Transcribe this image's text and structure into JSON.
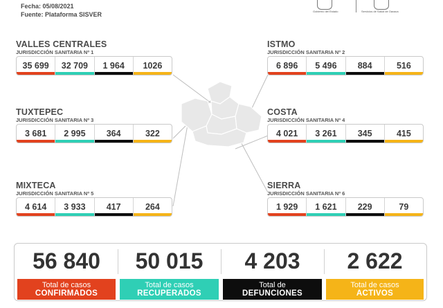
{
  "header": {
    "date": "Fecha: 05/08/2021",
    "source": "Fuente: Plataforma SISVER"
  },
  "logos": {
    "left_caption": "Gobierno del Estado",
    "right_caption": "Servicios de Salud de Oaxaca"
  },
  "colors": {
    "confirmados": "#e2421e",
    "recuperados": "#2fcfb5",
    "defunciones": "#0d0d0d",
    "activos": "#f5b418",
    "map": "#e8e8e8",
    "lines": "#bdbdbd"
  },
  "regions": [
    {
      "name": "VALLES CENTRALES",
      "jurisdiction": "JURISDICCIÓN SANITARIA Nº 1",
      "values": [
        "35 699",
        "32 709",
        "1 964",
        "1026"
      ]
    },
    {
      "name": "ISTMO",
      "jurisdiction": "JURISDICCIÓN SANITARIA Nº 2",
      "values": [
        "6 896",
        "5 496",
        "884",
        "516"
      ]
    },
    {
      "name": "TUXTEPEC",
      "jurisdiction": "JURISDICCIÓN SANITARIA Nº 3",
      "values": [
        "3 681",
        "2 995",
        "364",
        "322"
      ]
    },
    {
      "name": "COSTA",
      "jurisdiction": "JURISDICCIÓN SANITARIA Nº 4",
      "values": [
        "4 021",
        "3 261",
        "345",
        "415"
      ]
    },
    {
      "name": "MIXTECA",
      "jurisdiction": "JURISDICCIÓN SANITARIA Nº 5",
      "values": [
        "4 614",
        "3 933",
        "417",
        "264"
      ]
    },
    {
      "name": "SIERRA",
      "jurisdiction": "JURISDICCIÓN SANITARIA Nº 6",
      "values": [
        "1 929",
        "1 621",
        "229",
        "79"
      ]
    }
  ],
  "totals": [
    {
      "value": "56 840",
      "line1": "Total de casos",
      "line2": "CONFIRMADOS"
    },
    {
      "value": "50 015",
      "line1": "Total de casos",
      "line2": "RECUPERADOS"
    },
    {
      "value": "4 203",
      "line1": "Total de",
      "line2": "DEFUNCIONES"
    },
    {
      "value": "2 622",
      "line1": "Total de casos",
      "line2": "ACTIVOS"
    }
  ]
}
